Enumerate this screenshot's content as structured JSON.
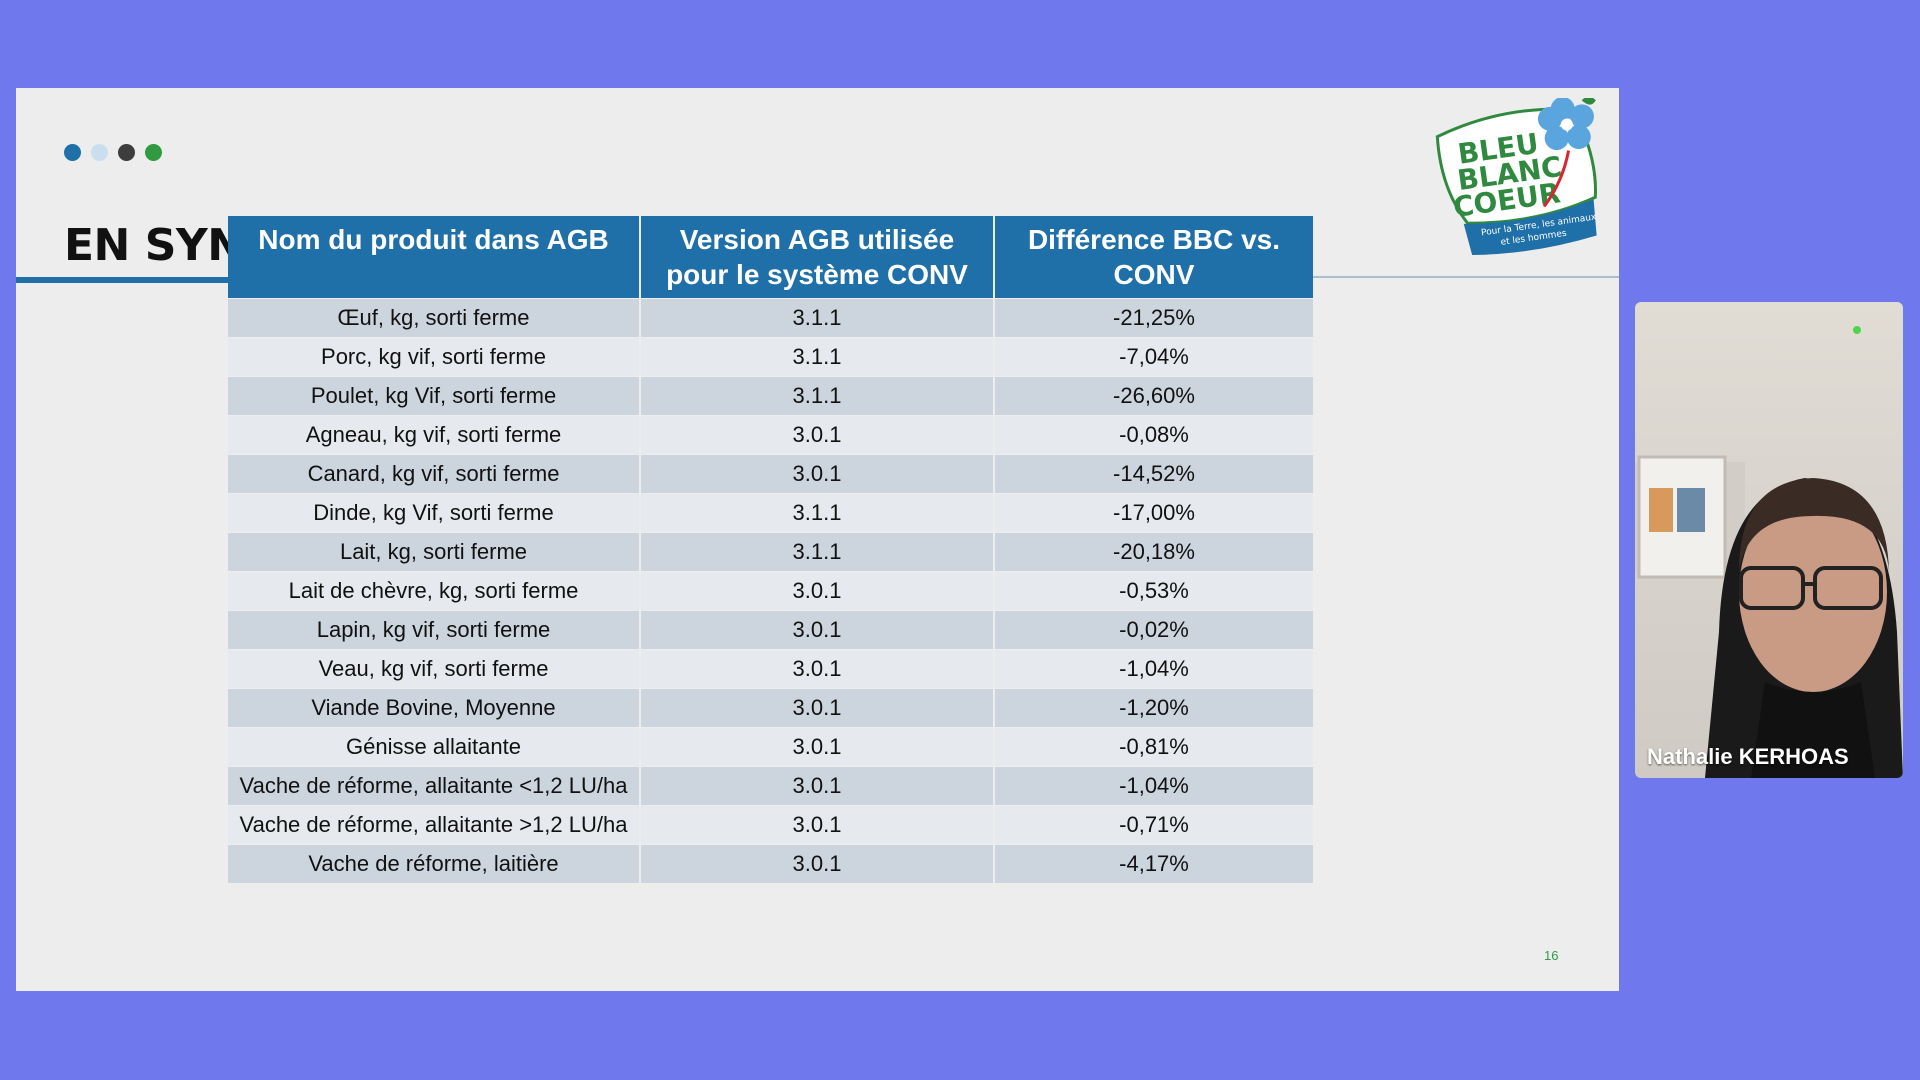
{
  "slide": {
    "title": "EN SYNTHÈSE",
    "page_number": "16",
    "dot_colors": [
      "#1f6fa8",
      "#c9dff0",
      "#3d3d3d",
      "#2f9a3f"
    ],
    "logo_text": [
      "BLEU",
      "BLANC",
      "COEUR"
    ],
    "logo_tagline": [
      "Pour la Terre, les animaux",
      "et les hommes"
    ]
  },
  "table": {
    "headers": [
      "Nom du produit dans AGB",
      "Version AGB utilisée pour le système CONV",
      "Différence BBC vs. CONV"
    ],
    "rows": [
      [
        "Œuf, kg, sorti ferme",
        "3.1.1",
        "-21,25%"
      ],
      [
        "Porc, kg vif, sorti ferme",
        "3.1.1",
        "-7,04%"
      ],
      [
        "Poulet, kg Vif, sorti ferme",
        "3.1.1",
        "-26,60%"
      ],
      [
        "Agneau, kg vif, sorti ferme",
        "3.0.1",
        "-0,08%"
      ],
      [
        "Canard, kg vif, sorti ferme",
        "3.0.1",
        "-14,52%"
      ],
      [
        "Dinde, kg Vif, sorti ferme",
        "3.1.1",
        "-17,00%"
      ],
      [
        "Lait, kg, sorti ferme",
        "3.1.1",
        "-20,18%"
      ],
      [
        "Lait de chèvre, kg, sorti ferme",
        "3.0.1",
        "-0,53%"
      ],
      [
        "Lapin, kg vif, sorti ferme",
        "3.0.1",
        "-0,02%"
      ],
      [
        "Veau, kg vif, sorti ferme",
        "3.0.1",
        "-1,04%"
      ],
      [
        "Viande Bovine, Moyenne",
        "3.0.1",
        "-1,20%"
      ],
      [
        "Génisse allaitante",
        "3.0.1",
        "-0,81%"
      ],
      [
        "Vache de réforme, allaitante <1,2 LU/ha",
        "3.0.1",
        "-1,04%"
      ],
      [
        "Vache de réforme, allaitante >1,2 LU/ha",
        "3.0.1",
        "-0,71%"
      ],
      [
        "Vache de réforme, laitière",
        "3.0.1",
        "-4,17%"
      ]
    ]
  },
  "webcam": {
    "participant_name": "Nathalie KERHOAS"
  }
}
